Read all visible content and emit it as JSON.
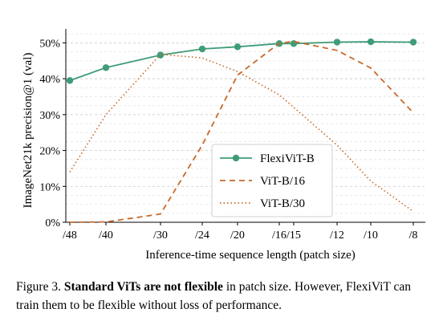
{
  "chart_data": {
    "type": "line",
    "xlabel": "Inference-time sequence length (patch size)",
    "ylabel": "ImageNet21k precision@1 (val)",
    "x_ticks": [
      "/48",
      "/40",
      "/30",
      "/24",
      "/20",
      "/16",
      "/15",
      "/12",
      "/10",
      "/8"
    ],
    "y_ticks": [
      "0%",
      "10%",
      "20%",
      "30%",
      "40%",
      "50%"
    ],
    "ylim": [
      0,
      53
    ],
    "grid": "horizontal-dashed",
    "legend_position": "center-right",
    "series": [
      {
        "name": "FlexiViT-B",
        "style": "solid-markers",
        "color": "#3f9c78",
        "points": [
          [
            "/48",
            39.5
          ],
          [
            "/40",
            43.1
          ],
          [
            "/30",
            46.6
          ],
          [
            "/24",
            48.3
          ],
          [
            "/20",
            48.9
          ],
          [
            "/16",
            49.8
          ],
          [
            "/15",
            49.8
          ],
          [
            "/12",
            50.2
          ],
          [
            "/10",
            50.3
          ],
          [
            "/8",
            50.2
          ]
        ]
      },
      {
        "name": "ViT-B/16",
        "style": "dashed",
        "color": "#c8692a",
        "points": [
          [
            "/48",
            0.0
          ],
          [
            "/40",
            0.1
          ],
          [
            "/30",
            2.3
          ],
          [
            "/24",
            21.5
          ],
          [
            "/20",
            41.0
          ],
          [
            "/16",
            49.9
          ],
          [
            "/15",
            50.4
          ],
          [
            "/12",
            47.9
          ],
          [
            "/10",
            43.0
          ],
          [
            "/8",
            30.5
          ]
        ]
      },
      {
        "name": "ViT-B/30",
        "style": "dotted",
        "color": "#c8692a",
        "points": [
          [
            "/48",
            14.0
          ],
          [
            "/40",
            30.0
          ],
          [
            "/30",
            46.8
          ],
          [
            "/24",
            45.8
          ],
          [
            "/20",
            42.0
          ],
          [
            "/16",
            35.5
          ],
          [
            "/15",
            32.0
          ],
          [
            "/12",
            21.5
          ],
          [
            "/10",
            11.5
          ],
          [
            "/8",
            3.0
          ]
        ]
      }
    ]
  },
  "caption": {
    "prefix": "Figure 3. ",
    "bold": "Standard ViTs are not flexible",
    "rest": " in patch size. However, FlexiViT can train them to be flexible without loss of performance."
  }
}
